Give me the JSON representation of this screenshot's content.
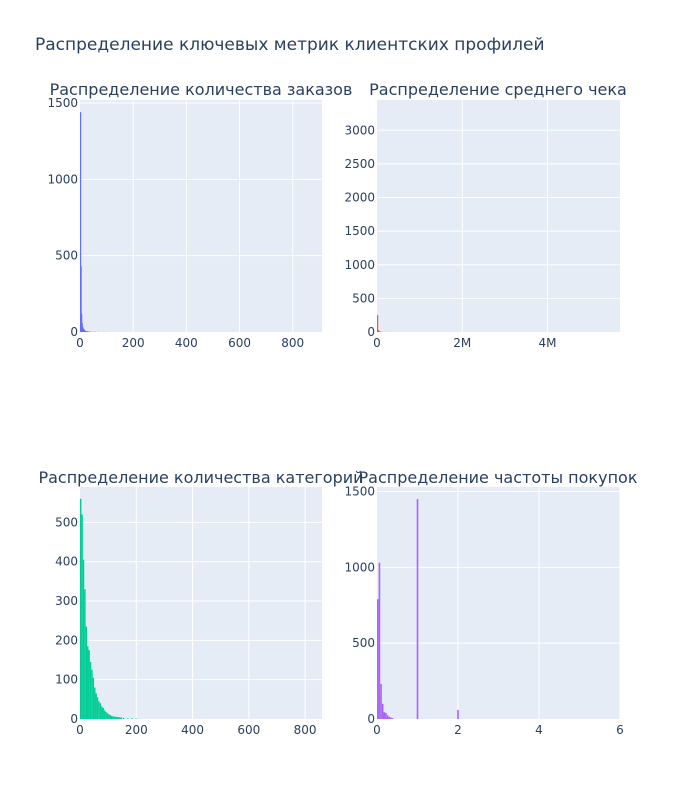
{
  "title": "Распределение ключевых метрик клиентских профилей",
  "chart_data": [
    {
      "type": "bar",
      "title": "Распределение количества заказов",
      "color": "#636efa",
      "xlim": [
        0,
        910
      ],
      "ylim": [
        0,
        1520
      ],
      "xticks": [
        0,
        200,
        400,
        600,
        800
      ],
      "xtick_labels": [
        "0",
        "200",
        "400",
        "600",
        "800"
      ],
      "yticks": [
        0,
        500,
        1000,
        1500
      ],
      "ytick_labels": [
        "0",
        "500",
        "1000",
        "1500"
      ],
      "bin_width": 2,
      "x": [
        1,
        3,
        5,
        7,
        9,
        11,
        13,
        15,
        17,
        19,
        23,
        27,
        31,
        37,
        45,
        55,
        70,
        90
      ],
      "y": [
        1440,
        430,
        120,
        60,
        35,
        25,
        18,
        14,
        10,
        8,
        6,
        5,
        4,
        3,
        2,
        2,
        1,
        1
      ]
    },
    {
      "type": "bar",
      "title": "Распределение среднего чека",
      "color": "#ef553b",
      "xlim": [
        0,
        5700000
      ],
      "ylim": [
        0,
        3450
      ],
      "xticks": [
        0,
        2000000,
        4000000
      ],
      "xtick_labels": [
        "0",
        "2M",
        "4M"
      ],
      "yticks": [
        0,
        500,
        1000,
        1500,
        2000,
        2500,
        3000
      ],
      "ytick_labels": [
        "0",
        "500",
        "1000",
        "1500",
        "2000",
        "2500",
        "3000"
      ],
      "bin_width": 20000,
      "x": [
        10000,
        30000,
        50000,
        70000,
        90000,
        130000,
        200000,
        350000
      ],
      "y": [
        250,
        30,
        12,
        8,
        5,
        3,
        2,
        1
      ]
    },
    {
      "type": "bar",
      "title": "Распределение количества категорий",
      "color": "#00cc96",
      "xlim": [
        0,
        860
      ],
      "ylim": [
        0,
        590
      ],
      "xticks": [
        0,
        200,
        400,
        600,
        800
      ],
      "xtick_labels": [
        "0",
        "200",
        "400",
        "600",
        "800"
      ],
      "yticks": [
        0,
        100,
        200,
        300,
        400,
        500
      ],
      "ytick_labels": [
        "0",
        "100",
        "200",
        "300",
        "400",
        "500"
      ],
      "bin_width": 5,
      "x": [
        2.5,
        7.5,
        12.5,
        17.5,
        22.5,
        27.5,
        32.5,
        37.5,
        42.5,
        47.5,
        52.5,
        57.5,
        62.5,
        67.5,
        72.5,
        77.5,
        82.5,
        87.5,
        92.5,
        97.5,
        102.5,
        107.5,
        112.5,
        117.5,
        122.5,
        127.5,
        132.5,
        137.5,
        142.5,
        147.5,
        155,
        170,
        185,
        200
      ],
      "y": [
        560,
        520,
        405,
        330,
        235,
        185,
        175,
        145,
        125,
        105,
        80,
        65,
        55,
        45,
        40,
        32,
        28,
        22,
        18,
        15,
        12,
        10,
        8,
        7,
        6,
        6,
        5,
        5,
        4,
        4,
        3,
        2,
        2,
        1
      ]
    },
    {
      "type": "bar",
      "title": "Распределение частоты покупок",
      "color": "#ab63fa",
      "xlim": [
        0,
        6
      ],
      "ylim": [
        0,
        1530
      ],
      "xticks": [
        0,
        2,
        4,
        6
      ],
      "xtick_labels": [
        "0",
        "2",
        "4",
        "6"
      ],
      "yticks": [
        0,
        500,
        1000,
        1500
      ],
      "ytick_labels": [
        "0",
        "500",
        "1000",
        "1500"
      ],
      "bin_width": 0.04,
      "x": [
        0.02,
        0.06,
        0.1,
        0.14,
        0.18,
        0.22,
        0.26,
        0.3,
        0.34,
        0.38,
        1.0,
        2.0
      ],
      "y": [
        790,
        1030,
        230,
        100,
        45,
        40,
        25,
        15,
        10,
        6,
        1450,
        60
      ]
    }
  ]
}
